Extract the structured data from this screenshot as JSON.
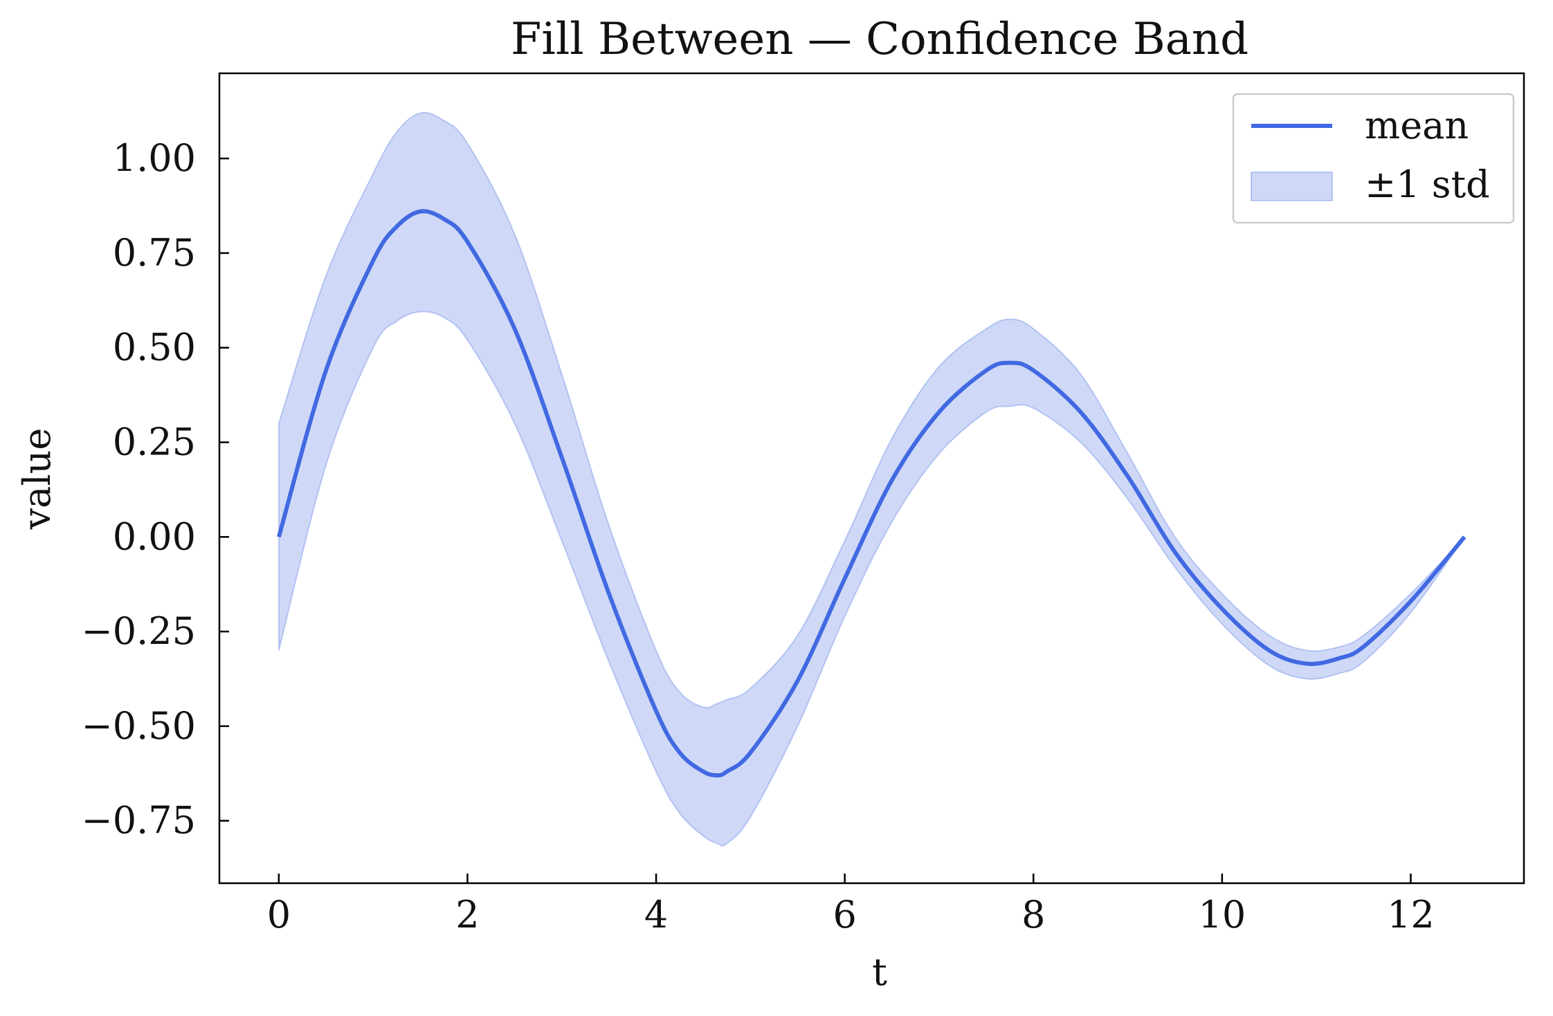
{
  "chart_data": {
    "type": "line",
    "title": "Fill Between — Confidence Band",
    "xlabel": "t",
    "ylabel": "value",
    "xlim": [
      -0.63,
      13.2
    ],
    "ylim": [
      -0.915,
      1.225
    ],
    "x_ticks": [
      0,
      2,
      4,
      6,
      8,
      10,
      12
    ],
    "x_tick_labels": [
      "0",
      "2",
      "4",
      "6",
      "8",
      "10",
      "12"
    ],
    "y_ticks": [
      -0.75,
      -0.5,
      -0.25,
      0.0,
      0.25,
      0.5,
      0.75,
      1.0
    ],
    "y_tick_labels": [
      "−0.75",
      "−0.50",
      "−0.25",
      "0.00",
      "0.25",
      "0.50",
      "0.75",
      "1.00"
    ],
    "grid": false,
    "legend_position": "top-right",
    "series": [
      {
        "name": "mean",
        "kind": "line",
        "color": "#4169e1",
        "x": [
          0.0,
          0.5,
          1.0,
          1.25,
          1.5,
          1.75,
          2.0,
          2.5,
          3.0,
          3.5,
          4.0,
          4.25,
          4.5,
          4.65,
          4.75,
          5.0,
          5.5,
          6.0,
          6.5,
          7.0,
          7.5,
          7.75,
          8.0,
          8.5,
          9.0,
          9.5,
          10.0,
          10.5,
          10.9,
          11.25,
          11.5,
          12.0,
          12.57
        ],
        "y": [
          0.0,
          0.44,
          0.73,
          0.82,
          0.86,
          0.84,
          0.78,
          0.55,
          0.21,
          -0.15,
          -0.46,
          -0.57,
          -0.62,
          -0.63,
          -0.62,
          -0.57,
          -0.38,
          -0.11,
          0.15,
          0.33,
          0.44,
          0.46,
          0.44,
          0.33,
          0.16,
          -0.04,
          -0.19,
          -0.3,
          -0.335,
          -0.32,
          -0.29,
          -0.17,
          0.0
        ]
      },
      {
        "name": "±1 std",
        "kind": "band",
        "color": "#4169e1",
        "x": [
          0.0,
          0.5,
          1.0,
          1.25,
          1.5,
          1.75,
          2.0,
          2.5,
          3.0,
          3.5,
          4.0,
          4.25,
          4.5,
          4.65,
          4.75,
          5.0,
          5.5,
          6.0,
          6.5,
          7.0,
          7.5,
          7.75,
          8.0,
          8.5,
          9.0,
          9.5,
          10.0,
          10.5,
          10.9,
          11.25,
          11.5,
          12.0,
          12.57
        ],
        "lower": [
          -0.3,
          0.19,
          0.5,
          0.57,
          0.595,
          0.58,
          0.52,
          0.3,
          -0.01,
          -0.33,
          -0.62,
          -0.73,
          -0.79,
          -0.81,
          -0.81,
          -0.74,
          -0.5,
          -0.21,
          0.04,
          0.22,
          0.33,
          0.345,
          0.34,
          0.25,
          0.1,
          -0.08,
          -0.23,
          -0.34,
          -0.375,
          -0.36,
          -0.33,
          -0.2,
          0.0
        ],
        "upper": [
          0.3,
          0.69,
          0.96,
          1.07,
          1.12,
          1.1,
          1.04,
          0.8,
          0.43,
          0.03,
          -0.3,
          -0.41,
          -0.45,
          -0.44,
          -0.43,
          -0.4,
          -0.26,
          -0.01,
          0.26,
          0.45,
          0.55,
          0.575,
          0.55,
          0.43,
          0.22,
          0.0,
          -0.15,
          -0.26,
          -0.3,
          -0.29,
          -0.26,
          -0.15,
          0.0
        ]
      }
    ]
  }
}
